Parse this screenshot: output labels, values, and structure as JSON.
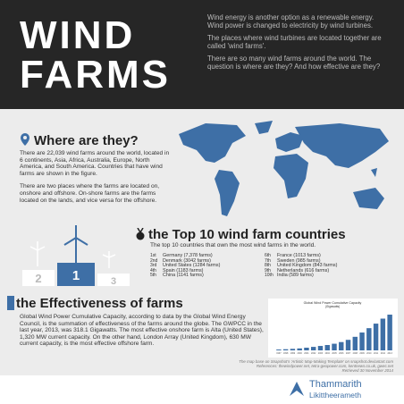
{
  "header": {
    "title_lines": [
      "WIND",
      "FARMS"
    ],
    "intro": [
      "Wind energy is another option as a renewable energy. Wind power is changed to electricity by wind turbines.",
      "The places where wind turbines are located together are called 'wind farms'.",
      "There are so many wind farms around the world. The question is where are they? And how effective are they?"
    ]
  },
  "where": {
    "heading": "Where are they?",
    "paragraphs": [
      "There are 22,039 wind farms around the world, located in 6 continents, Asia, Africa, Australia, Europe, North America, and South America. Countries that have wind farms are shown in the figure.",
      "There are two places where the farms are located on, onshore and offshore. On-shore farms are the farms located on the lands, and vice versa for the offshore."
    ]
  },
  "top10": {
    "heading": "the Top 10 wind farm countries",
    "subtitle": "The top 10 countries that own the most wind farms in the world.",
    "podium": [
      "2",
      "1",
      "3"
    ],
    "countries": [
      {
        "rank": "1st",
        "text": "Germany (7,378 farms)"
      },
      {
        "rank": "2nd",
        "text": "Denmark (3042 farms)"
      },
      {
        "rank": "3rd",
        "text": "United States (1284 farms)"
      },
      {
        "rank": "4th",
        "text": "Spain (1183 farms)"
      },
      {
        "rank": "5th",
        "text": "China (1141 farms)"
      },
      {
        "rank": "6th",
        "text": "France (1013 farms)"
      },
      {
        "rank": "7th",
        "text": "Sweden (985 farms)"
      },
      {
        "rank": "8th",
        "text": "United Kingdom (843 farms)"
      },
      {
        "rank": "9th",
        "text": "Netherlands (616 farms)"
      },
      {
        "rank": "10th",
        "text": "India (589 farms)"
      }
    ]
  },
  "effectiveness": {
    "heading": "the Effectiveness of farms",
    "paragraph": "Global Wind Power Cumulative Capacity, according to data by the Global Wind Energy Council, is the summation of effectiveness of the farms around the globe. The GWPCC in the last year, 2013, was 318.1 Gigawatts. The most effective onshore farm is Alta (United States), 1,320 MW current capacity. On the other hand, London Array (United Kingdom), 630 MW current capacity, is the most effective offshore farm."
  },
  "chart_data": {
    "type": "bar",
    "title": "Global Wind Power Cumulative Capacity",
    "subtitle": "(Gigawatts)",
    "categories": [
      "1997",
      "1998",
      "1999",
      "2000",
      "2001",
      "2002",
      "2003",
      "2004",
      "2005",
      "2006",
      "2007",
      "2008",
      "2009",
      "2010",
      "2011",
      "2012",
      "2013"
    ],
    "values": [
      7.6,
      10.2,
      13.6,
      17.4,
      23.9,
      31.1,
      39.4,
      47.6,
      59.1,
      73.9,
      93.6,
      120.7,
      158.9,
      197.6,
      238.1,
      282.5,
      318.1
    ],
    "color": "#3e6fa6",
    "ylim": [
      0,
      350
    ]
  },
  "credits": [
    "The map base on Snapshot's 'Artistic Map-Making Template' on snapshot.deviantart.com",
    "References: thewindpower.net, tetra-geopower.com, kentnews.co.uk, gwec.net",
    "Retrieved 30 November 2014"
  ],
  "footer": {
    "name_lines": [
      "Thammarith",
      "Likittheerameth"
    ]
  }
}
